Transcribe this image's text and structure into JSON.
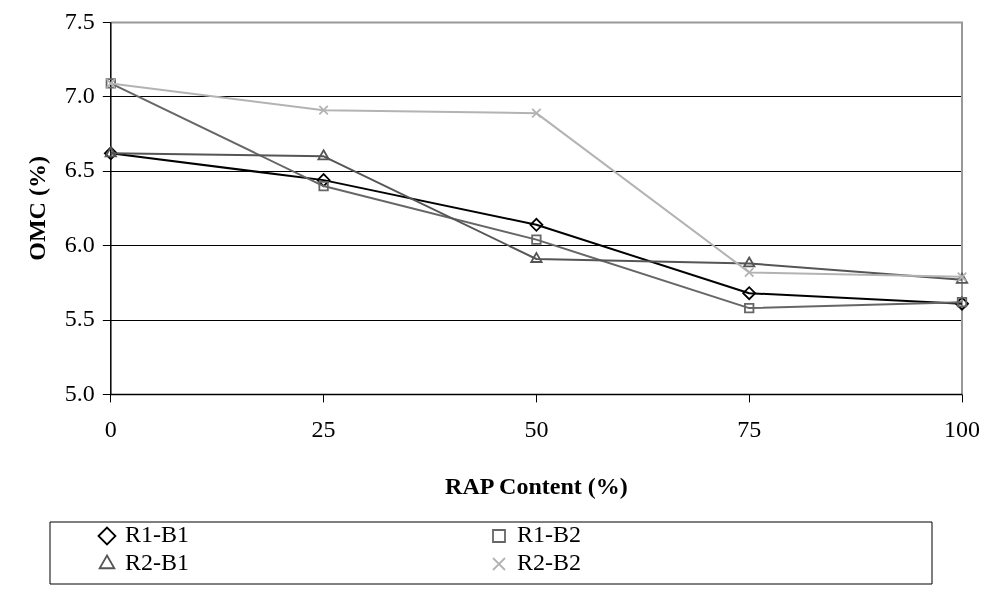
{
  "chart_data": {
    "type": "line",
    "xlabel": "RAP Content (%)",
    "ylabel": "OMC (%)",
    "x": [
      0,
      25,
      50,
      75,
      100
    ],
    "series": [
      {
        "name": "R1-B1",
        "color": "#000000",
        "marker": "diamond",
        "values": [
          6.62,
          6.44,
          6.14,
          5.68,
          5.61
        ]
      },
      {
        "name": "R1-B2",
        "color": "#666666",
        "marker": "square",
        "values": [
          7.09,
          6.4,
          6.04,
          5.58,
          5.62
        ]
      },
      {
        "name": "R2-B1",
        "color": "#555555",
        "marker": "triangle",
        "values": [
          6.62,
          6.6,
          5.91,
          5.88,
          5.77
        ]
      },
      {
        "name": "R2-B2",
        "color": "#b3b3b3",
        "marker": "cross",
        "values": [
          7.09,
          6.91,
          6.89,
          5.82,
          5.79
        ]
      }
    ],
    "xlim": [
      0,
      100
    ],
    "xticks": [
      0,
      25,
      50,
      75,
      100
    ],
    "ylim": [
      5.0,
      7.5
    ],
    "yticks": [
      {
        "value": 5,
        "label": "5.0"
      },
      {
        "value": 5.5,
        "label": "5.5"
      },
      {
        "value": 6,
        "label": "6.0"
      },
      {
        "value": 6.5,
        "label": "6.5"
      },
      {
        "value": 7,
        "label": "7.0"
      },
      {
        "value": 7.5,
        "label": "7.5"
      }
    ],
    "grid": "y",
    "legend": "bottom",
    "line_style": "solid"
  }
}
